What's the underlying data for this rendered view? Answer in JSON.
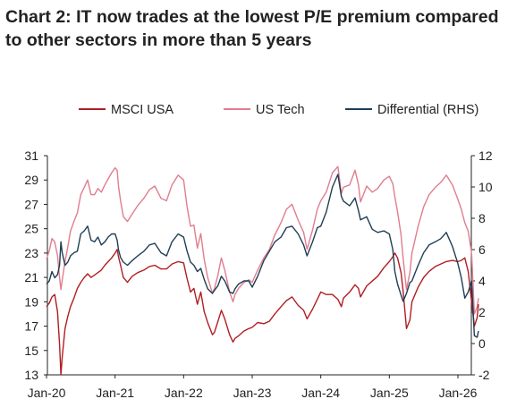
{
  "chart_data": {
    "type": "line",
    "title": "Chart 2: IT now trades at the lowest P/E premium compared to other sectors in more than 5 years",
    "legend_position": "top",
    "grid": false,
    "x_ticks": [
      "Jan-20",
      "Jan-21",
      "Jan-22",
      "Jan-23",
      "Jan-24",
      "Jan-25",
      "Jan-26"
    ],
    "x_range": [
      2020.0,
      2026.42
    ],
    "y_left": {
      "range": [
        13,
        31
      ],
      "ticks": [
        13,
        15,
        17,
        19,
        21,
        23,
        25,
        27,
        29,
        31
      ]
    },
    "y_right": {
      "range": [
        -2,
        12
      ],
      "ticks": [
        -2,
        0,
        2,
        4,
        6,
        8,
        10,
        12
      ]
    },
    "series": [
      {
        "name": "MSCI USA",
        "axis": "left",
        "color": "#b01e23",
        "x": [
          2020.0,
          2020.04,
          2020.08,
          2020.12,
          2020.16,
          2020.19,
          2020.21,
          2020.23,
          2020.27,
          2020.31,
          2020.35,
          2020.4,
          2020.45,
          2020.5,
          2020.55,
          2020.6,
          2020.65,
          2020.7,
          2020.75,
          2020.8,
          2020.85,
          2020.9,
          2020.95,
          2021.0,
          2021.03,
          2021.05,
          2021.08,
          2021.12,
          2021.18,
          2021.25,
          2021.33,
          2021.42,
          2021.5,
          2021.58,
          2021.67,
          2021.75,
          2021.83,
          2021.92,
          2022.0,
          2022.05,
          2022.1,
          2022.15,
          2022.2,
          2022.25,
          2022.3,
          2022.35,
          2022.42,
          2022.45,
          2022.5,
          2022.55,
          2022.6,
          2022.67,
          2022.72,
          2022.75,
          2022.8,
          2022.88,
          2022.95,
          2023.0,
          2023.08,
          2023.17,
          2023.25,
          2023.33,
          2023.42,
          2023.5,
          2023.58,
          2023.67,
          2023.75,
          2023.8,
          2023.88,
          2023.95,
          2024.0,
          2024.08,
          2024.17,
          2024.25,
          2024.3,
          2024.33,
          2024.42,
          2024.5,
          2024.55,
          2024.58,
          2024.67,
          2024.75,
          2024.83,
          2024.92,
          2025.0,
          2025.05,
          2025.08,
          2025.12,
          2025.17,
          2025.2,
          2025.25,
          2025.3,
          2025.33,
          2025.42,
          2025.5,
          2025.58,
          2025.67,
          2025.75,
          2025.83,
          2025.92,
          2026.0,
          2026.05,
          2026.1,
          2026.15,
          2026.2,
          2026.24,
          2026.28,
          2026.3
        ],
        "values": [
          18.6,
          18.9,
          19.4,
          19.6,
          18.2,
          15.5,
          13.0,
          14.5,
          16.8,
          17.8,
          18.6,
          19.3,
          20.1,
          20.6,
          21.0,
          21.3,
          21.0,
          21.2,
          21.4,
          21.6,
          22.0,
          22.3,
          22.6,
          23.0,
          23.3,
          22.7,
          22.0,
          21.0,
          20.6,
          21.1,
          21.4,
          21.6,
          21.9,
          22.0,
          21.7,
          21.7,
          22.1,
          22.3,
          22.2,
          20.9,
          19.8,
          20.1,
          18.8,
          19.8,
          18.2,
          17.3,
          16.3,
          16.5,
          17.4,
          18.3,
          17.6,
          16.3,
          15.7,
          16.0,
          16.2,
          16.6,
          16.8,
          16.9,
          17.3,
          17.2,
          17.4,
          18.0,
          18.6,
          19.1,
          19.4,
          18.7,
          18.3,
          17.6,
          18.4,
          19.2,
          19.8,
          19.6,
          19.6,
          19.2,
          18.6,
          19.3,
          19.8,
          20.4,
          20.1,
          19.4,
          20.3,
          20.7,
          21.1,
          21.8,
          22.3,
          22.7,
          23.0,
          22.6,
          21.4,
          19.9,
          16.8,
          17.5,
          19.0,
          20.2,
          21.0,
          21.5,
          21.9,
          22.1,
          22.3,
          22.4,
          22.3,
          22.4,
          22.6,
          21.5,
          19.0,
          17.0,
          17.7,
          18.8
        ]
      },
      {
        "name": "US Tech",
        "axis": "left",
        "color": "#e07d8e",
        "x": [
          2020.0,
          2020.04,
          2020.08,
          2020.12,
          2020.16,
          2020.19,
          2020.21,
          2020.23,
          2020.27,
          2020.31,
          2020.35,
          2020.4,
          2020.45,
          2020.5,
          2020.55,
          2020.6,
          2020.65,
          2020.7,
          2020.75,
          2020.8,
          2020.85,
          2020.9,
          2020.95,
          2021.0,
          2021.03,
          2021.05,
          2021.08,
          2021.12,
          2021.18,
          2021.25,
          2021.33,
          2021.42,
          2021.5,
          2021.58,
          2021.67,
          2021.75,
          2021.83,
          2021.92,
          2022.0,
          2022.05,
          2022.1,
          2022.15,
          2022.2,
          2022.25,
          2022.3,
          2022.35,
          2022.42,
          2022.45,
          2022.5,
          2022.55,
          2022.6,
          2022.67,
          2022.72,
          2022.75,
          2022.8,
          2022.88,
          2022.95,
          2023.0,
          2023.08,
          2023.17,
          2023.25,
          2023.33,
          2023.42,
          2023.5,
          2023.58,
          2023.67,
          2023.75,
          2023.8,
          2023.88,
          2023.95,
          2024.0,
          2024.08,
          2024.17,
          2024.25,
          2024.3,
          2024.33,
          2024.42,
          2024.5,
          2024.55,
          2024.58,
          2024.67,
          2024.75,
          2024.83,
          2024.92,
          2025.0,
          2025.05,
          2025.08,
          2025.12,
          2025.17,
          2025.2,
          2025.25,
          2025.3,
          2025.33,
          2025.42,
          2025.5,
          2025.58,
          2025.67,
          2025.75,
          2025.83,
          2025.92,
          2026.0,
          2026.05,
          2026.1,
          2026.15,
          2026.2,
          2026.24,
          2026.28,
          2026.3
        ],
        "values": [
          22.5,
          23.2,
          24.2,
          23.9,
          22.8,
          21.0,
          20.0,
          20.8,
          22.3,
          23.5,
          24.8,
          25.6,
          26.3,
          27.8,
          28.4,
          29.0,
          27.8,
          27.8,
          28.3,
          28.0,
          28.6,
          29.1,
          29.6,
          30.0,
          29.8,
          28.5,
          27.3,
          26.0,
          25.6,
          26.2,
          26.9,
          27.5,
          28.2,
          28.5,
          27.5,
          27.3,
          28.6,
          29.4,
          29.0,
          26.8,
          25.2,
          25.3,
          23.4,
          24.6,
          22.5,
          21.0,
          19.7,
          20.1,
          21.2,
          22.6,
          21.6,
          19.8,
          19.0,
          19.6,
          20.1,
          20.6,
          20.8,
          20.6,
          21.6,
          22.6,
          23.3,
          24.5,
          25.5,
          26.6,
          27.0,
          25.7,
          24.7,
          23.3,
          24.9,
          26.6,
          27.3,
          28.0,
          29.6,
          30.1,
          27.9,
          28.4,
          28.6,
          29.8,
          28.6,
          27.2,
          28.5,
          28.0,
          28.3,
          29.0,
          29.3,
          28.7,
          27.6,
          26.4,
          24.5,
          22.6,
          20.0,
          21.4,
          23.0,
          25.2,
          26.8,
          27.8,
          28.4,
          28.8,
          29.4,
          28.6,
          27.4,
          26.6,
          25.5,
          24.8,
          23.0,
          18.0,
          18.6,
          19.3
        ]
      },
      {
        "name": "Differential (RHS)",
        "axis": "right",
        "color": "#203d54",
        "x": [
          2020.0,
          2020.04,
          2020.08,
          2020.12,
          2020.16,
          2020.19,
          2020.21,
          2020.23,
          2020.27,
          2020.31,
          2020.35,
          2020.4,
          2020.45,
          2020.5,
          2020.55,
          2020.6,
          2020.65,
          2020.7,
          2020.75,
          2020.8,
          2020.85,
          2020.9,
          2020.95,
          2021.0,
          2021.03,
          2021.05,
          2021.08,
          2021.12,
          2021.18,
          2021.25,
          2021.33,
          2021.42,
          2021.5,
          2021.58,
          2021.67,
          2021.75,
          2021.83,
          2021.92,
          2022.0,
          2022.05,
          2022.1,
          2022.15,
          2022.2,
          2022.25,
          2022.3,
          2022.35,
          2022.42,
          2022.45,
          2022.5,
          2022.55,
          2022.6,
          2022.67,
          2022.72,
          2022.75,
          2022.8,
          2022.88,
          2022.95,
          2023.0,
          2023.08,
          2023.17,
          2023.25,
          2023.33,
          2023.42,
          2023.5,
          2023.58,
          2023.67,
          2023.75,
          2023.8,
          2023.88,
          2023.95,
          2024.0,
          2024.08,
          2024.17,
          2024.25,
          2024.3,
          2024.33,
          2024.42,
          2024.5,
          2024.55,
          2024.58,
          2024.67,
          2024.75,
          2024.83,
          2024.92,
          2025.0,
          2025.05,
          2025.08,
          2025.12,
          2025.17,
          2025.2,
          2025.25,
          2025.3,
          2025.33,
          2025.42,
          2025.5,
          2025.58,
          2025.67,
          2025.75,
          2025.83,
          2025.92,
          2026.0,
          2026.05,
          2026.1,
          2026.15,
          2026.2,
          2026.24,
          2026.28,
          2026.3
        ],
        "values": [
          3.8,
          4.0,
          4.6,
          4.2,
          4.4,
          5.0,
          6.5,
          5.8,
          5.0,
          5.2,
          5.6,
          5.8,
          5.9,
          7.0,
          7.2,
          7.5,
          6.6,
          6.5,
          6.8,
          6.3,
          6.5,
          6.8,
          7.0,
          7.0,
          6.6,
          6.0,
          5.5,
          5.2,
          5.0,
          5.3,
          5.6,
          5.9,
          6.3,
          6.4,
          5.8,
          5.6,
          6.5,
          7.0,
          6.8,
          5.9,
          5.2,
          5.0,
          4.6,
          4.8,
          4.1,
          3.5,
          3.2,
          3.4,
          3.7,
          4.3,
          4.0,
          3.3,
          3.2,
          3.5,
          3.8,
          4.0,
          4.0,
          3.6,
          4.3,
          5.3,
          5.9,
          6.5,
          6.8,
          7.4,
          7.5,
          7.0,
          6.3,
          5.6,
          6.5,
          7.4,
          7.5,
          8.4,
          10.0,
          10.8,
          9.4,
          9.1,
          8.8,
          9.3,
          8.5,
          7.9,
          8.1,
          7.3,
          7.1,
          7.2,
          7.0,
          6.0,
          4.6,
          3.8,
          3.1,
          2.7,
          3.2,
          3.9,
          4.0,
          5.0,
          5.8,
          6.3,
          6.5,
          6.7,
          7.1,
          6.2,
          5.1,
          4.2,
          2.9,
          3.3,
          4.0,
          0.5,
          0.4,
          0.8
        ]
      }
    ]
  }
}
